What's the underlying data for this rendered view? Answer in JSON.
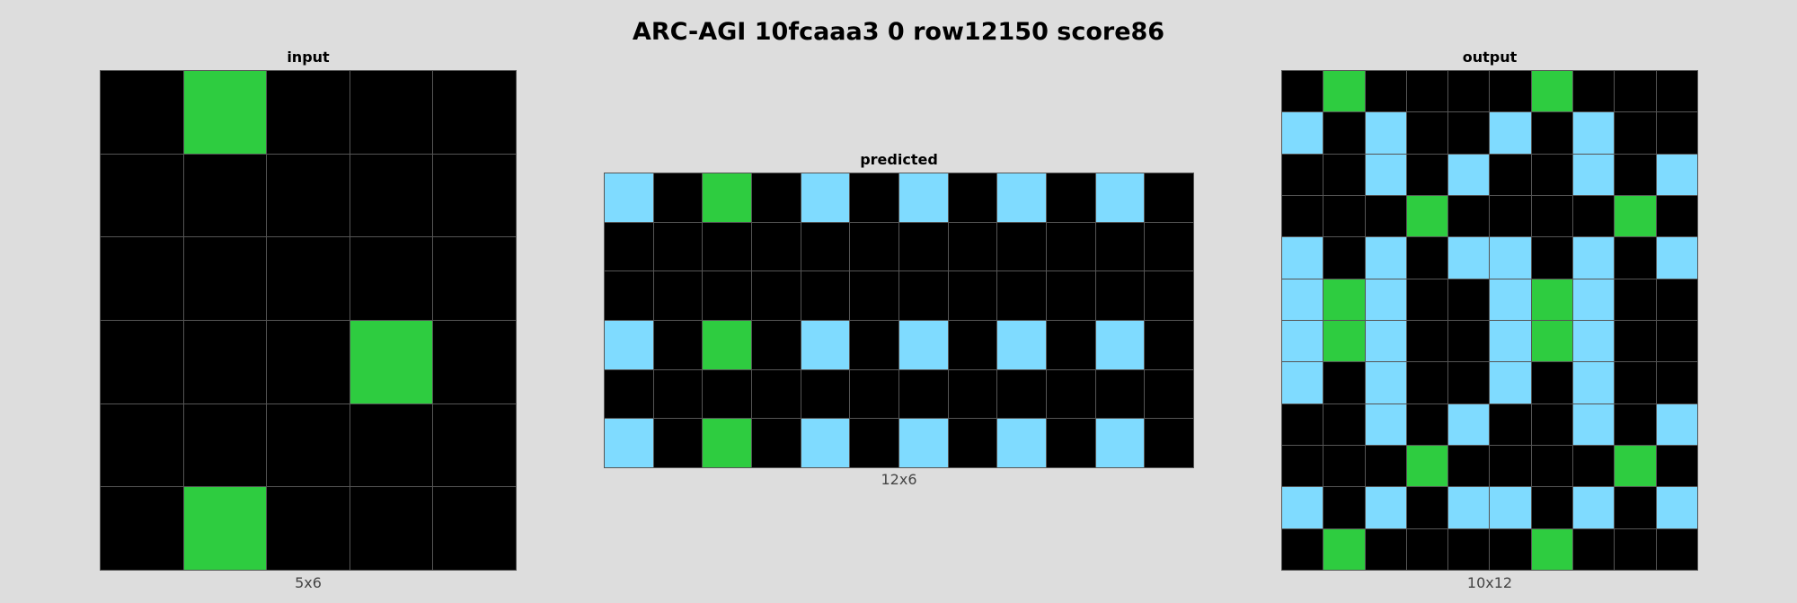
{
  "title": "ARC-AGI 10fcaaa3 0 row12150 score86",
  "palette": {
    "0": "#000000",
    "3": "#2ecc40",
    "8": "#7fdbff"
  },
  "panels": [
    {
      "id": "input",
      "label": "input",
      "dims": "5x6",
      "grid": [
        [
          0,
          3,
          0,
          0,
          0
        ],
        [
          0,
          0,
          0,
          0,
          0
        ],
        [
          0,
          0,
          0,
          0,
          0
        ],
        [
          0,
          0,
          0,
          3,
          0
        ],
        [
          0,
          0,
          0,
          0,
          0
        ],
        [
          0,
          3,
          0,
          0,
          0
        ]
      ]
    },
    {
      "id": "predicted",
      "label": "predicted",
      "dims": "12x6",
      "grid": [
        [
          8,
          0,
          3,
          0,
          8,
          0,
          8,
          0,
          8,
          0,
          8,
          0
        ],
        [
          0,
          0,
          0,
          0,
          0,
          0,
          0,
          0,
          0,
          0,
          0,
          0
        ],
        [
          0,
          0,
          0,
          0,
          0,
          0,
          0,
          0,
          0,
          0,
          0,
          0
        ],
        [
          8,
          0,
          3,
          0,
          8,
          0,
          8,
          0,
          8,
          0,
          8,
          0
        ],
        [
          0,
          0,
          0,
          0,
          0,
          0,
          0,
          0,
          0,
          0,
          0,
          0
        ],
        [
          8,
          0,
          3,
          0,
          8,
          0,
          8,
          0,
          8,
          0,
          8,
          0
        ]
      ]
    },
    {
      "id": "output",
      "label": "output",
      "dims": "10x12",
      "grid": [
        [
          0,
          3,
          0,
          0,
          0,
          0,
          3,
          0,
          0,
          0
        ],
        [
          8,
          0,
          8,
          0,
          0,
          8,
          0,
          8,
          0,
          0
        ],
        [
          0,
          0,
          8,
          0,
          8,
          0,
          0,
          8,
          0,
          8
        ],
        [
          0,
          0,
          0,
          3,
          0,
          0,
          0,
          0,
          3,
          0
        ],
        [
          8,
          0,
          8,
          0,
          8,
          8,
          0,
          8,
          0,
          8
        ],
        [
          8,
          3,
          8,
          0,
          0,
          8,
          3,
          8,
          0,
          0
        ],
        [
          8,
          3,
          8,
          0,
          0,
          8,
          3,
          8,
          0,
          0
        ],
        [
          8,
          0,
          8,
          0,
          0,
          8,
          0,
          8,
          0,
          0
        ],
        [
          0,
          0,
          8,
          0,
          8,
          0,
          0,
          8,
          0,
          8
        ],
        [
          0,
          0,
          0,
          3,
          0,
          0,
          0,
          0,
          3,
          0
        ],
        [
          8,
          0,
          8,
          0,
          8,
          8,
          0,
          8,
          0,
          8
        ],
        [
          0,
          3,
          0,
          0,
          0,
          0,
          3,
          0,
          0,
          0
        ]
      ]
    }
  ]
}
